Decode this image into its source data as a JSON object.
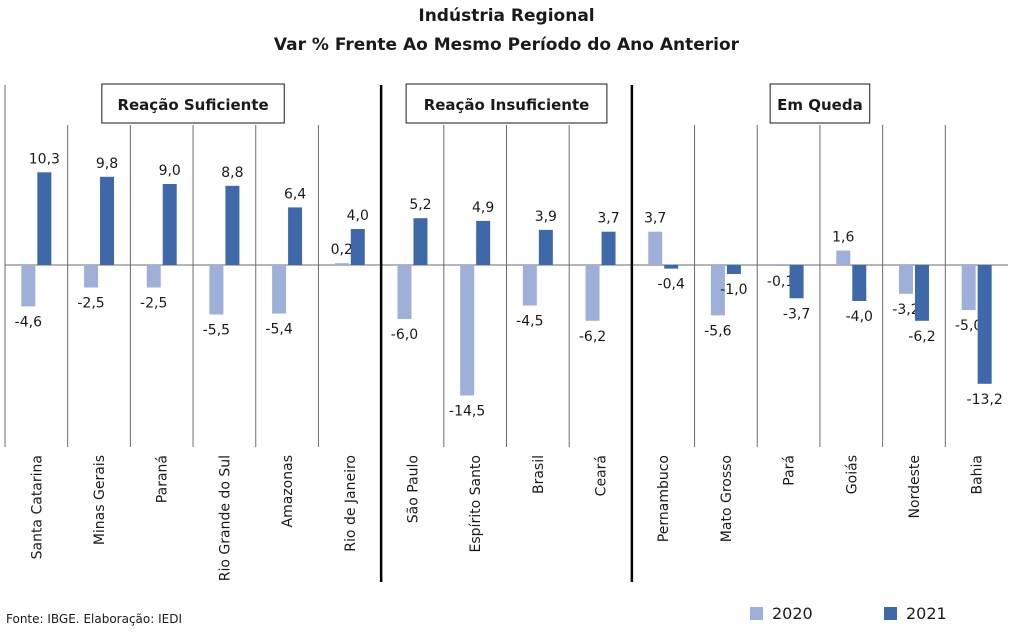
{
  "chart_data": {
    "type": "bar",
    "title": "Indústria Regional",
    "subtitle": "Var % Frente Ao Mesmo Período do Ano Anterior",
    "categories": [
      "Santa Catarina",
      "Minas Gerais",
      "Paraná",
      "Rio Grande do Sul",
      "Amazonas",
      "Rio de Janeiro",
      "São Paulo",
      "Espírito Santo",
      "Brasil",
      "Ceará",
      "Pernambuco",
      "Mato Grosso",
      "Pará",
      "Goiás",
      "Nordeste",
      "Bahia"
    ],
    "series": [
      {
        "name": "2020",
        "color": "#9fb0d8",
        "values": [
          -4.6,
          -2.5,
          -2.5,
          -5.5,
          -5.4,
          0.2,
          -6.0,
          -14.5,
          -4.5,
          -6.2,
          3.7,
          -5.6,
          -0.1,
          1.6,
          -3.2,
          -5.0
        ]
      },
      {
        "name": "2021",
        "color": "#3f68a8",
        "values": [
          10.3,
          9.8,
          9.0,
          8.8,
          6.4,
          4.0,
          5.2,
          4.9,
          3.9,
          3.7,
          -0.4,
          -1.0,
          -3.7,
          -4.0,
          -6.2,
          -13.2
        ]
      }
    ],
    "groups": [
      {
        "label": "Reação Suficiente",
        "count": 6
      },
      {
        "label": "Reação Insuficiente",
        "count": 4
      },
      {
        "label": "Em Queda",
        "count": 6
      }
    ],
    "ylim": [
      -19.5,
      20.5
    ],
    "grid": false,
    "legend_position": "bottom-right",
    "xlabel": "",
    "ylabel": ""
  },
  "footer": {
    "source": "Fonte: IBGE. Elaboração: IEDI"
  }
}
